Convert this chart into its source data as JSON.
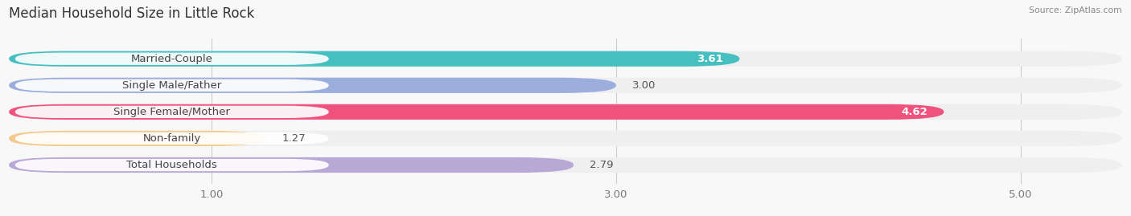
{
  "title": "Median Household Size in Little Rock",
  "source": "Source: ZipAtlas.com",
  "categories": [
    "Married-Couple",
    "Single Male/Father",
    "Single Female/Mother",
    "Non-family",
    "Total Households"
  ],
  "values": [
    3.61,
    3.0,
    4.62,
    1.27,
    2.79
  ],
  "bar_colors": [
    "#45bfc0",
    "#9baede",
    "#f0527e",
    "#f5c98a",
    "#b8a8d5"
  ],
  "bar_bg_color": "#efefef",
  "value_inside": [
    true,
    false,
    true,
    false,
    false
  ],
  "xlim_data": [
    0,
    5.5
  ],
  "xstart": 0,
  "xticks": [
    1.0,
    3.0,
    5.0
  ],
  "tick_labels": [
    "1.00",
    "3.00",
    "5.00"
  ],
  "label_fontsize": 9.5,
  "value_fontsize": 9.5,
  "title_fontsize": 12,
  "background_color": "#f8f8f8",
  "bar_bg_alpha": 1.0
}
